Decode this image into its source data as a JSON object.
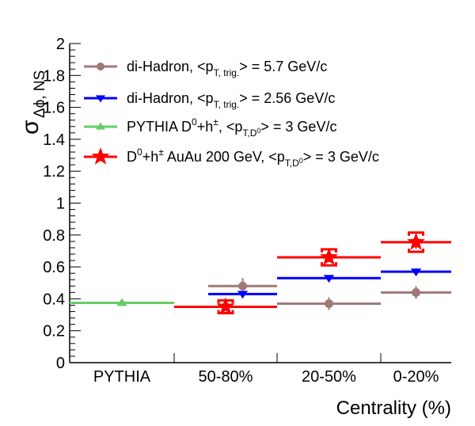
{
  "chart_data": {
    "type": "scatter",
    "xlabel": "Centrality (%)",
    "ylabel_main": "σ",
    "ylabel_sub": "Δϕ, NS",
    "ylim": [
      0,
      2
    ],
    "yticks": [
      "0",
      "0.2",
      "0.4",
      "0.6",
      "0.8",
      "1",
      "1.2",
      "1.4",
      "1.6",
      "1.8",
      "2"
    ],
    "categories": [
      "PYTHIA",
      "50-80%",
      "20-50%",
      "0-20%"
    ],
    "grid": false,
    "legend_position": "top",
    "series": [
      {
        "id": "dihadron57",
        "legend_parts": [
          "di-Hadron, <p",
          "T, trig.",
          "> =  5.7 GeV/c"
        ],
        "color": "#a07878",
        "marker": "circle",
        "points": [
          {
            "category": "50-80%",
            "y": 0.48,
            "err": 0.05
          },
          {
            "category": "20-50%",
            "y": 0.37,
            "err": 0.04
          },
          {
            "category": "0-20%",
            "y": 0.44,
            "err": 0.04
          }
        ]
      },
      {
        "id": "dihadron256",
        "legend_parts": [
          "di-Hadron, <p",
          "T, trig.",
          "> =  2.56 GeV/c"
        ],
        "color": "#0000ff",
        "marker": "triangle-down",
        "points": [
          {
            "category": "50-80%",
            "y": 0.43,
            "err": 0.01
          },
          {
            "category": "20-50%",
            "y": 0.53,
            "err": 0.01
          },
          {
            "category": "0-20%",
            "y": 0.57,
            "err": 0.01
          }
        ]
      },
      {
        "id": "pythia",
        "legend_parts": [
          "PYTHIA D",
          "0",
          "+h",
          "±",
          ", <p",
          "T,D",
          "0",
          "> = 3 GeV/c"
        ],
        "color": "#66cc66",
        "marker": "triangle-up",
        "points": [
          {
            "category": "PYTHIA",
            "y": 0.375,
            "err": 0.005
          }
        ]
      },
      {
        "id": "d0auau",
        "legend_parts": [
          "D",
          "0",
          "+h",
          "±",
          " AuAu 200 GeV, <p",
          "T,D",
          "0",
          "> = 3 GeV/c"
        ],
        "color": "#ff0000",
        "marker": "star",
        "points": [
          {
            "category": "50-80%",
            "y": 0.35,
            "err": 0.02,
            "sys": 0.04
          },
          {
            "category": "20-50%",
            "y": 0.66,
            "err": 0.03,
            "sys": 0.05
          },
          {
            "category": "0-20%",
            "y": 0.755,
            "err": 0.04,
            "sys": 0.06
          }
        ]
      }
    ]
  }
}
